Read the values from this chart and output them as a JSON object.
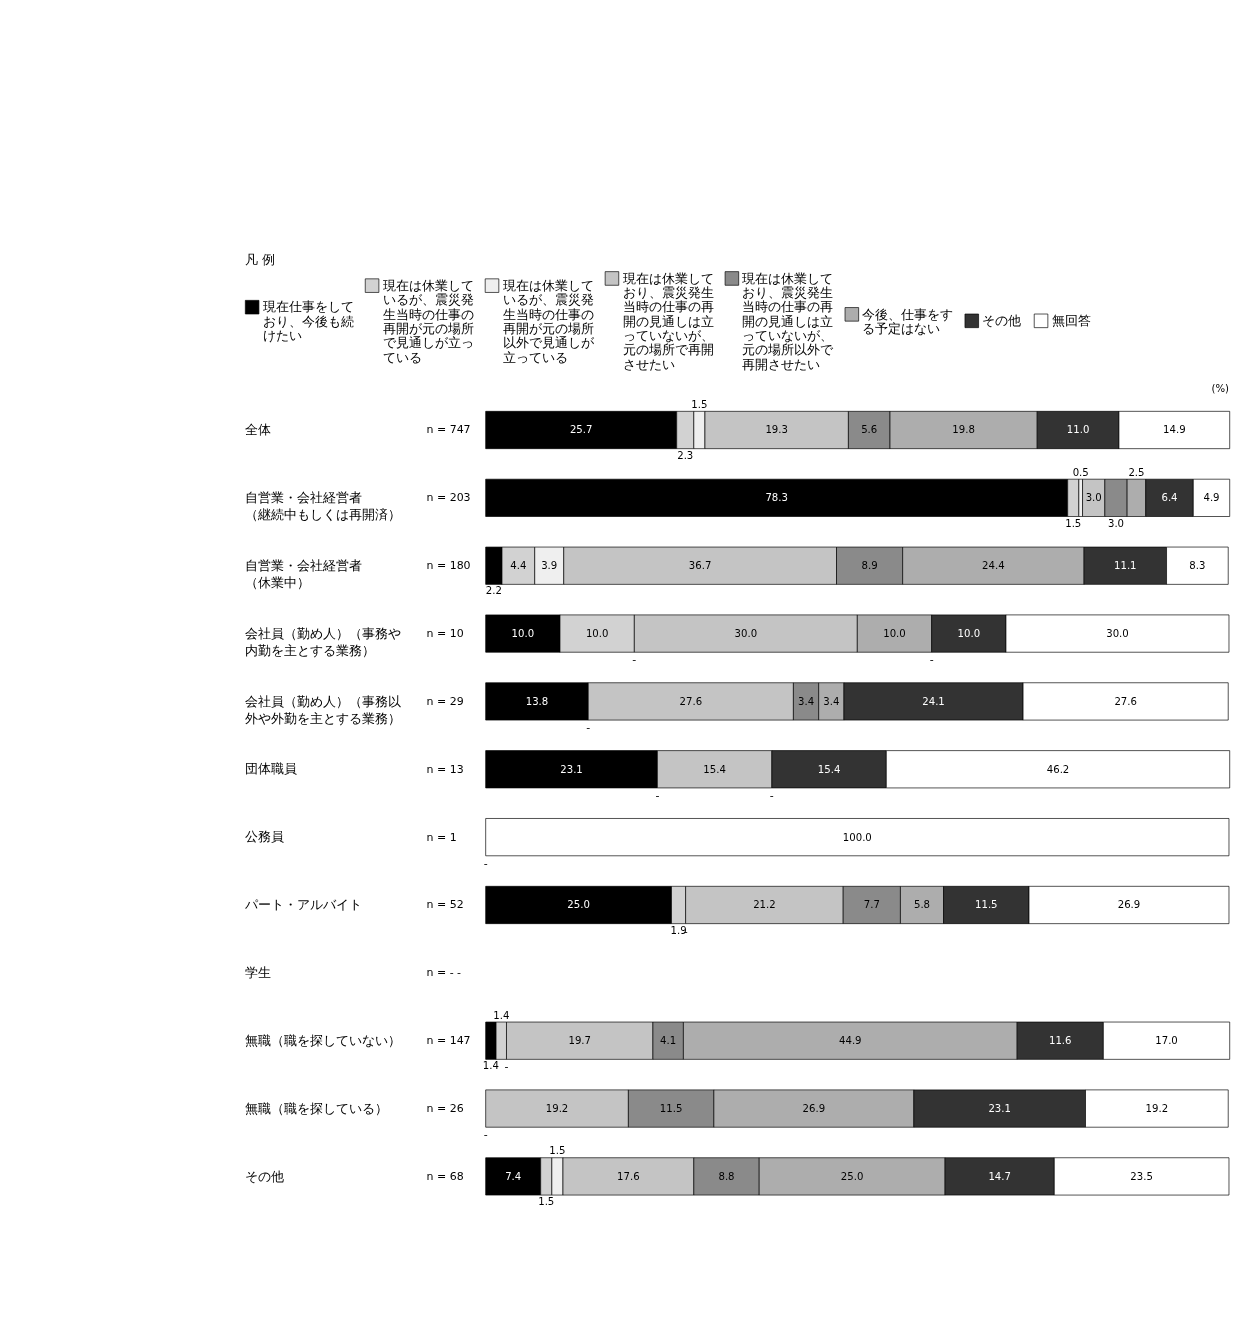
{
  "chart_data": {
    "type": "bar",
    "orientation": "horizontal",
    "stacked": true,
    "legend": "top",
    "legend_title": "凡 例",
    "xlim": [
      0,
      100
    ],
    "categories": [
      "全体",
      "自営業・会社経営者（継続中もしくは再開済）",
      "自営業・会社経営者（休業中）",
      "会社員（勤め人）（事務や内勤を主とする業務）",
      "会社員（勤め人）（事務以外や外勤を主とする業務）",
      "団体職員",
      "公務員",
      "パート・アルバイト",
      "学生",
      "無職（職を探していない）",
      "無職（職を探している）",
      "その他"
    ],
    "y2_categories": [
      "n = 747",
      "n = 203",
      "n = 180",
      "n = 10",
      "n = 29",
      "n = 13",
      "n = 1",
      "n = 52",
      "n =   -   -",
      "n = 147",
      "n = 26",
      "n = 68"
    ],
    "annotations": [
      "(%)",
      {
        "text": "-",
        "x": 20.0,
        "y": "会社員（勤め人）（事務や内勤を主とする業務）"
      },
      {
        "text": "-",
        "x": 60.0,
        "y": "会社員（勤め人）（事務や内勤を主とする業務）"
      },
      {
        "text": "-",
        "x": 13.8,
        "y": "会社員（勤め人）（事務以外や外勤を主とする業務）"
      },
      {
        "text": "-",
        "x": 23.1,
        "y": "団体職員"
      },
      {
        "text": "-",
        "x": 38.5,
        "y": "団体職員"
      },
      {
        "text": "-",
        "x": 0,
        "y": "公務員"
      },
      {
        "text": "-",
        "x": 26.9,
        "y": "パート・アルバイト"
      },
      {
        "text": "-",
        "x": 2.8,
        "y": "無職（職を探していない）"
      },
      {
        "text": "-",
        "x": 0,
        "y": "無職（職を探している）"
      }
    ],
    "series": [
      {
        "name": "現在仕事をしており、今後も続けたい",
        "color": "#000000",
        "values": [
          25.7,
          78.3,
          2.2,
          10.0,
          13.8,
          23.1,
          null,
          25.0,
          null,
          1.4,
          null,
          7.4
        ],
        "value_labels": [
          "25.7",
          "78.3",
          "2.2",
          "10.0",
          "13.8",
          "23.1",
          null,
          "25.0",
          null,
          "1.4",
          null,
          "7.4"
        ]
      },
      {
        "name": "現在は休業しているが、震災発生当時の仕事の再開が元の場所で見通しが立っている",
        "color": "#d2d2d2",
        "values": [
          2.3,
          1.5,
          4.4,
          10.0,
          null,
          null,
          null,
          1.9,
          null,
          1.4,
          null,
          1.5
        ],
        "value_labels": [
          "2.3",
          "1.5",
          "4.4",
          "10.0",
          null,
          null,
          null,
          "1.9",
          null,
          "1.4",
          null,
          "1.5"
        ]
      },
      {
        "name": "現在は休業しているが、震災発生当時の仕事の再開が元の場所以外で見通しが立っている",
        "color": "#efefef",
        "values": [
          1.5,
          0.5,
          3.9,
          null,
          null,
          null,
          null,
          null,
          null,
          null,
          null,
          1.5
        ],
        "value_labels": [
          "1.5",
          "0.5",
          "3.9",
          null,
          null,
          null,
          null,
          null,
          null,
          null,
          null,
          "1.5"
        ]
      },
      {
        "name": "現在は休業しており、震災発生当時の仕事の再開の見通しは立っていないが、元の場所で再開させたい",
        "color": "#c4c4c4",
        "values": [
          19.3,
          3.0,
          36.7,
          30.0,
          27.6,
          15.4,
          null,
          21.2,
          null,
          19.7,
          19.2,
          17.6
        ],
        "value_labels": [
          "19.3",
          "3.0",
          "36.7",
          "30.0",
          "27.6",
          "15.4",
          null,
          "21.2",
          null,
          "19.7",
          "19.2",
          "17.6"
        ]
      },
      {
        "name": "現在は休業しており、震災発生当時の仕事の再開の見通しは立っていないが、元の場所以外で再開させたい",
        "color": "#8a8a8a",
        "values": [
          5.6,
          3.0,
          8.9,
          null,
          3.4,
          null,
          null,
          7.7,
          null,
          4.1,
          11.5,
          8.8
        ],
        "value_labels": [
          "5.6",
          "3.0",
          "8.9",
          null,
          "3.4",
          null,
          null,
          "7.7",
          null,
          "4.1",
          "11.5",
          "8.8"
        ]
      },
      {
        "name": "今後、仕事をする予定はない",
        "color": "#adadad",
        "values": [
          19.8,
          2.5,
          24.4,
          10.0,
          3.4,
          null,
          null,
          5.8,
          null,
          44.9,
          26.9,
          25.0
        ],
        "value_labels": [
          "19.8",
          "2.5",
          "24.4",
          "10.0",
          "3.4",
          null,
          null,
          "5.8",
          null,
          "44.9",
          "26.9",
          "25.0"
        ]
      },
      {
        "name": "その他",
        "color": "#333333",
        "values": [
          11.0,
          6.4,
          11.1,
          10.0,
          24.1,
          15.4,
          null,
          11.5,
          null,
          11.6,
          23.1,
          14.7
        ],
        "value_labels": [
          "11.0",
          "6.4",
          "11.1",
          "10.0",
          "24.1",
          "15.4",
          null,
          "11.5",
          null,
          "11.6",
          "23.1",
          "14.7"
        ]
      },
      {
        "name": "無回答",
        "color": "#ffffff",
        "values": [
          14.9,
          4.9,
          8.3,
          30.0,
          27.6,
          46.2,
          100.0,
          26.9,
          null,
          17.0,
          19.2,
          23.5
        ],
        "value_labels": [
          "14.9",
          "4.9",
          "8.3",
          "30.0",
          "27.6",
          "46.2",
          "100.0",
          "26.9",
          null,
          "17.0",
          "19.2",
          "23.5"
        ]
      }
    ]
  }
}
